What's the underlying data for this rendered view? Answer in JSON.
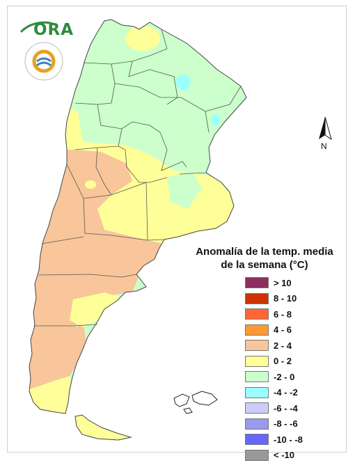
{
  "map": {
    "region": "Argentina",
    "north_label": "N"
  },
  "logo": {
    "ora_text": "ORA"
  },
  "legend": {
    "title_line1": "Anomalía de la temp. media",
    "title_line2": "de la semana (°C)",
    "items": [
      {
        "label": "> 10",
        "color": "#8b2f5e"
      },
      {
        "label": "8 - 10",
        "color": "#cc3300"
      },
      {
        "label": "6 - 8",
        "color": "#ff6633"
      },
      {
        "label": "4 - 6",
        "color": "#ff9933"
      },
      {
        "label": "2 - 4",
        "color": "#f8c69a"
      },
      {
        "label": "0 - 2",
        "color": "#ffff99"
      },
      {
        "label": "-2 - 0",
        "color": "#ccffcc"
      },
      {
        "label": "-4 - -2",
        "color": "#99ffff"
      },
      {
        "label": "-6 - -4",
        "color": "#ccccff"
      },
      {
        "label": "-8 - -6",
        "color": "#9999ee"
      },
      {
        "label": "-10 - -8",
        "color": "#6666ff"
      },
      {
        "label": "< -10",
        "color": "#999999"
      }
    ]
  }
}
